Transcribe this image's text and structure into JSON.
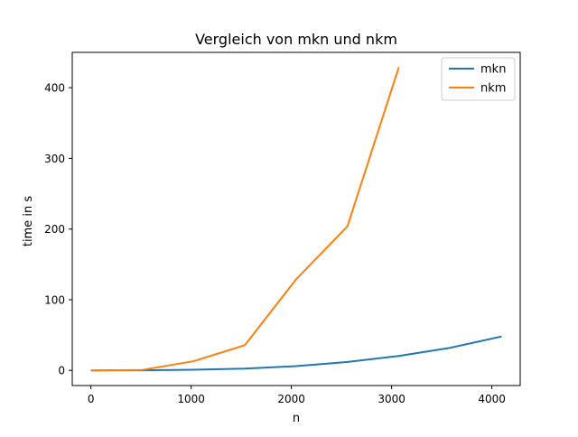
{
  "chart_data": {
    "type": "line",
    "title": "Vergleich von mkn und nkm",
    "xlabel": "n",
    "ylabel": "time in s",
    "xlim": [
      -186,
      4283
    ],
    "ylim": [
      -21.4,
      450
    ],
    "xticks": [
      0,
      1000,
      2000,
      3000,
      4000
    ],
    "xtick_labels": [
      "0",
      "1000",
      "2000",
      "3000",
      "4000"
    ],
    "yticks": [
      0,
      100,
      200,
      300,
      400
    ],
    "ytick_labels": [
      "0",
      "100",
      "200",
      "300",
      "400"
    ],
    "grid": false,
    "legend": "top-right",
    "series": [
      {
        "name": "mkn",
        "color": "#1f77b4",
        "x": [
          0,
          512,
          1024,
          1536,
          2048,
          2560,
          3072,
          3584,
          4096
        ],
        "y": [
          0,
          0.2,
          0.9,
          2.5,
          6.0,
          12.0,
          20.5,
          32.0,
          48.0
        ]
      },
      {
        "name": "nkm",
        "color": "#ff7f0e",
        "x": [
          0,
          512,
          1024,
          1536,
          2048,
          2560,
          3072
        ],
        "y": [
          0,
          0.7,
          13.0,
          35.7,
          129.0,
          204.0,
          429.0
        ]
      }
    ]
  }
}
